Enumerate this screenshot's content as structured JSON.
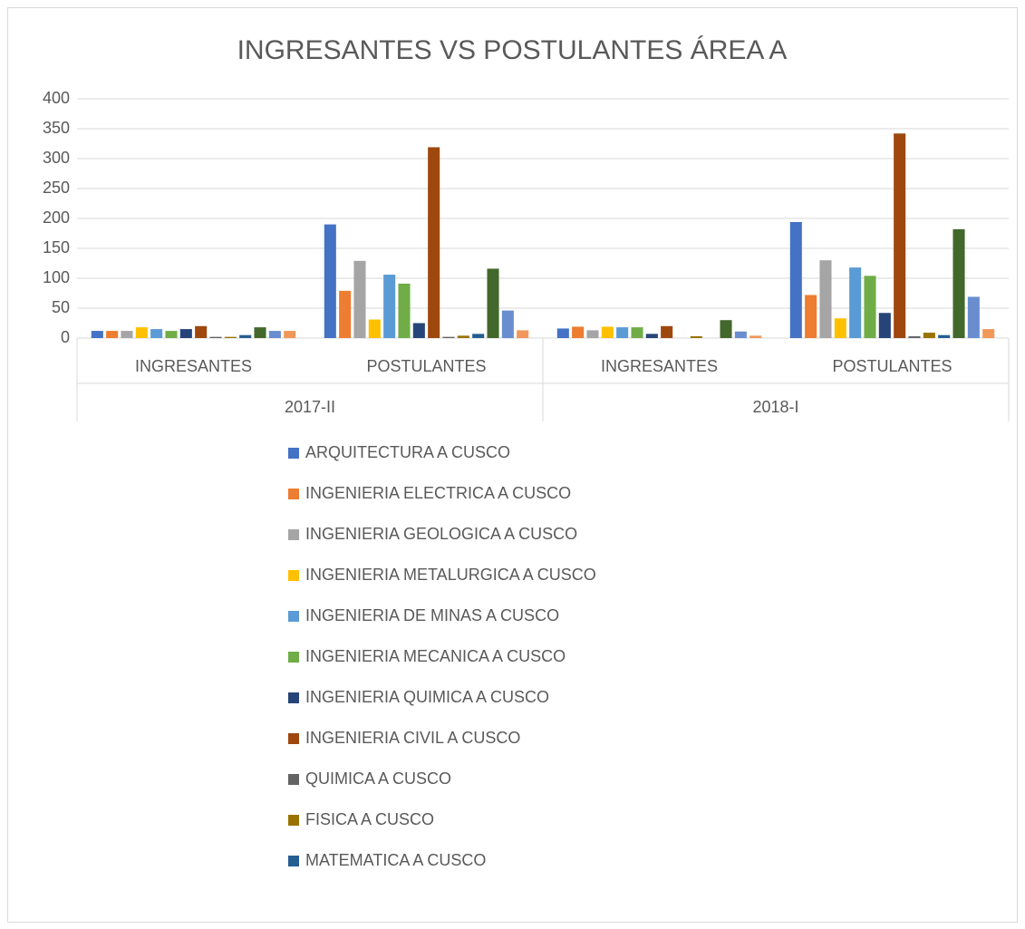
{
  "chart_data": {
    "type": "bar",
    "title": "INGRESANTES VS POSTULANTES ÁREA A",
    "categories": [
      "INGRESANTES",
      "POSTULANTES",
      "INGRESANTES",
      "POSTULANTES"
    ],
    "groups": [
      "2017-II",
      "2018-I"
    ],
    "ylim": [
      0,
      400
    ],
    "yticks": [
      0,
      50,
      100,
      150,
      200,
      250,
      300,
      350,
      400
    ],
    "grid": true,
    "legend": "bottom",
    "series": [
      {
        "name": "ARQUITECTURA A CUSCO",
        "color": "#4472c4",
        "values": [
          12,
          190,
          16,
          194
        ]
      },
      {
        "name": "INGENIERIA ELECTRICA A CUSCO",
        "color": "#ed7d31",
        "values": [
          12,
          79,
          19,
          72
        ]
      },
      {
        "name": "INGENIERIA GEOLOGICA A CUSCO",
        "color": "#a5a5a5",
        "values": [
          12,
          129,
          13,
          130
        ]
      },
      {
        "name": "INGENIERIA METALURGICA A CUSCO",
        "color": "#ffc000",
        "values": [
          18,
          31,
          19,
          33
        ]
      },
      {
        "name": "INGENIERIA DE MINAS A CUSCO",
        "color": "#5b9bd5",
        "values": [
          15,
          106,
          18,
          118
        ]
      },
      {
        "name": "INGENIERIA MECANICA A CUSCO",
        "color": "#70ad47",
        "values": [
          12,
          91,
          18,
          104
        ]
      },
      {
        "name": "INGENIERIA QUIMICA A CUSCO",
        "color": "#264478",
        "values": [
          15,
          25,
          7,
          42
        ]
      },
      {
        "name": "INGENIERIA CIVIL A CUSCO",
        "color": "#9e480e",
        "values": [
          20,
          319,
          20,
          342
        ]
      },
      {
        "name": "QUIMICA A CUSCO",
        "color": "#636363",
        "values": [
          2,
          2,
          0,
          3
        ]
      },
      {
        "name": "FISICA A CUSCO",
        "color": "#997300",
        "values": [
          2,
          4,
          3,
          9
        ]
      },
      {
        "name": "MATEMATICA A CUSCO",
        "color": "#255e91",
        "values": [
          5,
          7,
          0,
          5
        ]
      },
      {
        "name": null,
        "color": "#43682b",
        "values": [
          18,
          116,
          30,
          182
        ]
      },
      {
        "name": null,
        "color": "#698ed0",
        "values": [
          12,
          46,
          11,
          69
        ]
      },
      {
        "name": null,
        "color": "#f1975a",
        "values": [
          12,
          13,
          4,
          15
        ]
      }
    ]
  }
}
